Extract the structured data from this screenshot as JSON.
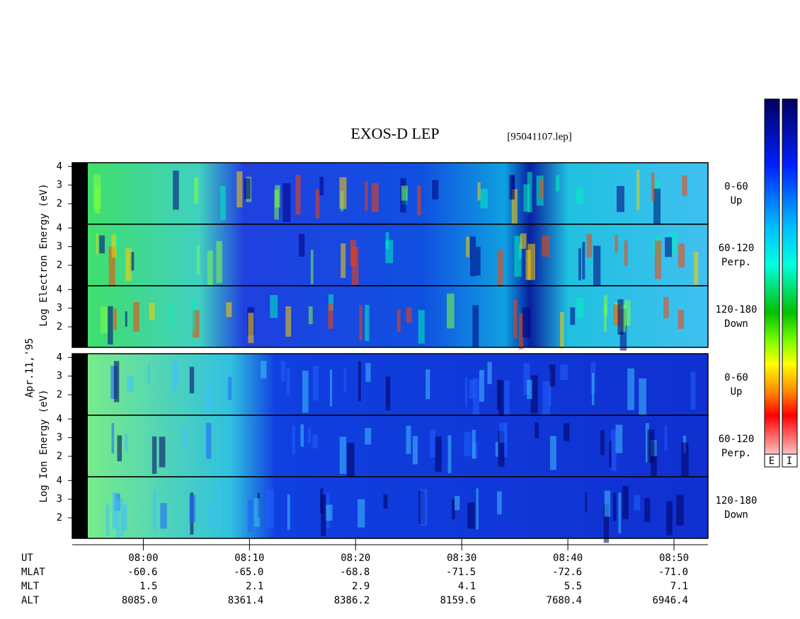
{
  "title": "EXOS-D LEP",
  "file": "[95041107.lep]",
  "date": "Apr.11,'95",
  "colorbar_labels": [
    "E",
    "I"
  ],
  "groups": [
    {
      "ylabel": "Log Electron Energy (eV)",
      "panels": [
        {
          "angle": "0-60",
          "direction": "Up"
        },
        {
          "angle": "60-120",
          "direction": "Perp."
        },
        {
          "angle": "120-180",
          "direction": "Down"
        }
      ]
    },
    {
      "ylabel": "Log Ion Energy (eV)",
      "panels": [
        {
          "angle": "0-60",
          "direction": "Up"
        },
        {
          "angle": "60-120",
          "direction": "Perp."
        },
        {
          "angle": "120-180",
          "direction": "Down"
        }
      ]
    }
  ],
  "yaxis": {
    "ylim": [
      0.9,
      4.2
    ],
    "yticks": [
      2,
      3,
      4
    ]
  },
  "time_axis": {
    "xlim": [
      473.3,
      533.2
    ],
    "xticks": [
      {
        "value": 480,
        "label": "08:00"
      },
      {
        "value": 490,
        "label": "08:10"
      },
      {
        "value": 500,
        "label": "08:20"
      },
      {
        "value": 510,
        "label": "08:30"
      },
      {
        "value": 520,
        "label": "08:40"
      },
      {
        "value": 530,
        "label": "08:50"
      }
    ],
    "row_names": [
      "UT",
      "MLAT",
      "MLT",
      "ALT"
    ],
    "rows": [
      [
        "-60.6",
        "-65.0",
        "-68.8",
        "-71.5",
        "-72.6",
        "-71.0"
      ],
      [
        "1.5",
        "2.1",
        "2.9",
        "4.1",
        "5.5",
        "7.1"
      ],
      [
        "8085.0",
        "8361.4",
        "8386.2",
        "8159.6",
        "7680.4",
        "6946.4"
      ]
    ]
  }
}
